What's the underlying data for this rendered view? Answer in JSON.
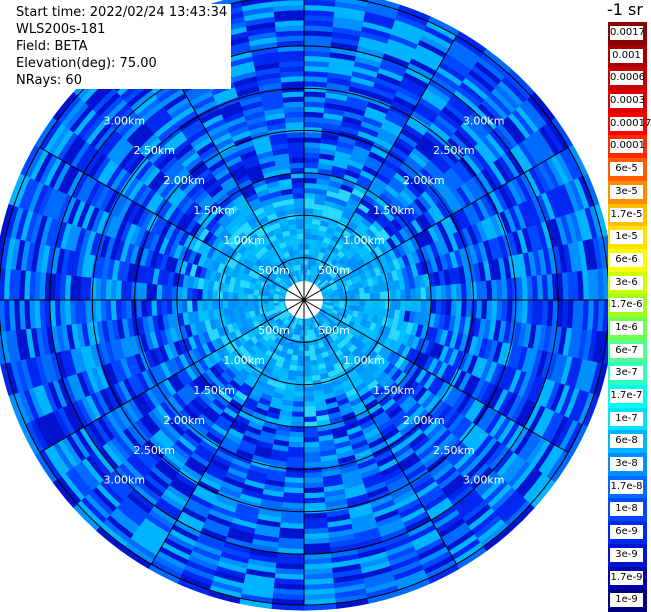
{
  "header": {
    "start_time": "Start time: 2022/02/24 13:43:34",
    "instrument": "WLS200s-181",
    "field": "Field: BETA",
    "elevation": "Elevation(deg): 75.00",
    "nrays": "NRays: 60"
  },
  "colorbar": {
    "units_label": "-1 sr",
    "levels": [
      {
        "label": "0.0017",
        "color": "#8b0000"
      },
      {
        "label": "0.001",
        "color": "#a80000"
      },
      {
        "label": "0.0006",
        "color": "#c40000"
      },
      {
        "label": "0.0003",
        "color": "#e00000"
      },
      {
        "label": "0.00017",
        "color": "#ff0000"
      },
      {
        "label": "0.0001",
        "color": "#ff2a00"
      },
      {
        "label": "6e-5",
        "color": "#ff5a00"
      },
      {
        "label": "3e-5",
        "color": "#ff8c00"
      },
      {
        "label": "1.7e-5",
        "color": "#ffbe00"
      },
      {
        "label": "1e-5",
        "color": "#ffe000"
      },
      {
        "label": "6e-6",
        "color": "#f6ff00"
      },
      {
        "label": "3e-6",
        "color": "#ccff00"
      },
      {
        "label": "1.7e-6",
        "color": "#a0ff20"
      },
      {
        "label": "1e-6",
        "color": "#70ff50"
      },
      {
        "label": "6e-7",
        "color": "#50ff90"
      },
      {
        "label": "3e-7",
        "color": "#30ffc0"
      },
      {
        "label": "1.7e-7",
        "color": "#00ffee"
      },
      {
        "label": "1e-7",
        "color": "#00e0ff"
      },
      {
        "label": "6e-8",
        "color": "#00b4ff"
      },
      {
        "label": "3e-8",
        "color": "#0090ff"
      },
      {
        "label": "1.7e-8",
        "color": "#006cff"
      },
      {
        "label": "1e-8",
        "color": "#0048ff"
      },
      {
        "label": "6e-9",
        "color": "#0028f0"
      },
      {
        "label": "3e-9",
        "color": "#0014d0"
      },
      {
        "label": "1.7e-9",
        "color": "#0000b0"
      },
      {
        "label": "1e-9",
        "color": "#000080"
      }
    ]
  },
  "chart_data": {
    "type": "heatmap",
    "projection": "polar",
    "range_unit": "km",
    "max_range_km": 3.6,
    "ring_labels_km": [
      0.5,
      1.0,
      1.5,
      2.0,
      2.5,
      3.0
    ],
    "ring_labels": [
      "500m",
      "1.00km",
      "1.50km",
      "2.00km",
      "2.50km",
      "3.00km"
    ],
    "spoke_angles_deg": [
      0,
      30,
      60,
      90,
      120,
      150,
      180,
      210,
      240,
      270,
      300,
      330
    ],
    "n_rays": 60,
    "inner_zone_km": 1.2,
    "inner_colors": [
      "#00a0ff",
      "#00b4ff",
      "#00c0ff",
      "#0090ff",
      "#28d8ff"
    ],
    "outer_colors": [
      "#0028f0",
      "#0048ff",
      "#006cff",
      "#0090ff",
      "#00b4ff",
      "#0014d0"
    ],
    "colors": {
      "ring_line": "#000000",
      "label_text": "#ffffff",
      "center_blank": "#ffffff"
    }
  }
}
